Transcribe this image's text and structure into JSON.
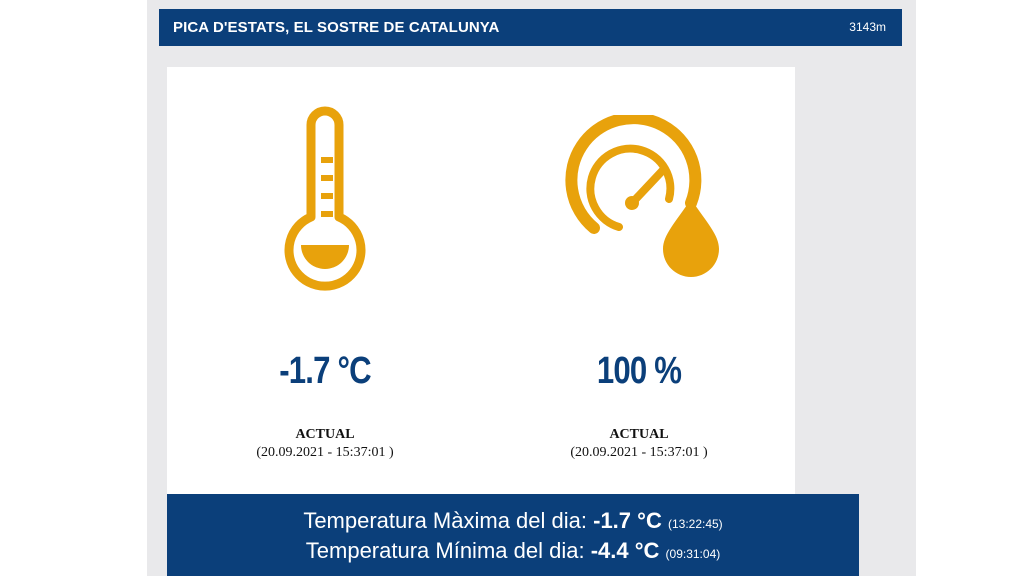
{
  "header": {
    "title": "PICA D'ESTATS, EL SOSTRE DE CATALUNYA",
    "altitude": "3143m"
  },
  "temperature": {
    "value": "-1.7 °C",
    "label": "ACTUAL",
    "timestamp": "(20.09.2021 - 15:37:01 )",
    "icon": "thermometer-icon"
  },
  "humidity": {
    "value": "100 %",
    "label": "ACTUAL",
    "timestamp": "(20.09.2021 - 15:37:01 )",
    "icon": "humidity-gauge-icon"
  },
  "daily": {
    "max_label": "Temperatura Màxima del dia:",
    "max_value": "-1.7 °C",
    "max_time": "(13:22:45)",
    "min_label": "Temperatura Mínima del dia:",
    "min_value": "-4.4 °C",
    "min_time": "(09:31:04)"
  },
  "colors": {
    "brand_blue": "#0b3f7a",
    "icon_orange": "#e8a20c",
    "panel_grey": "#e9e9eb"
  }
}
